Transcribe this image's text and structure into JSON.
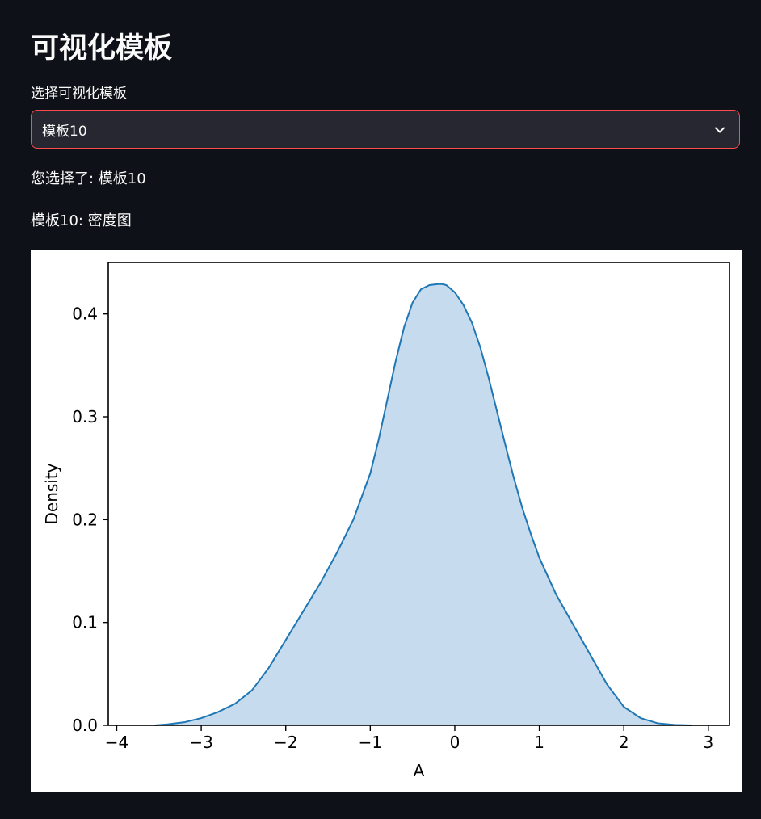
{
  "page": {
    "title": "可视化模板"
  },
  "selector": {
    "label": "选择可视化模板",
    "selected_value": "模板10"
  },
  "info": {
    "selection_text": "您选择了: 模板10",
    "template_caption": "模板10: 密度图"
  },
  "icons": {
    "dropdown": "chevron-down-icon"
  },
  "colors": {
    "background": "#0e1117",
    "select_bg": "#262730",
    "select_border": "#ff4b4b",
    "line": "#1f77b4",
    "fill": "#c6dbed"
  },
  "chart_data": {
    "type": "area",
    "title": "",
    "xlabel": "A",
    "ylabel": "Density",
    "xlim": [
      -4.1,
      3.25
    ],
    "ylim": [
      0.0,
      0.45
    ],
    "xticks": [
      -4,
      -3,
      -2,
      -1,
      0,
      1,
      2,
      3
    ],
    "yticks": [
      0.0,
      0.1,
      0.2,
      0.3,
      0.4
    ],
    "xtick_labels": [
      "−4",
      "−3",
      "−2",
      "−1",
      "0",
      "1",
      "2",
      "3"
    ],
    "ytick_labels": [
      "0.0",
      "0.1",
      "0.2",
      "0.3",
      "0.4"
    ],
    "grid": false,
    "series": [
      {
        "x": [
          -3.55,
          -3.4,
          -3.2,
          -3.0,
          -2.8,
          -2.6,
          -2.4,
          -2.2,
          -2.0,
          -1.8,
          -1.6,
          -1.4,
          -1.2,
          -1.0,
          -0.9,
          -0.8,
          -0.7,
          -0.6,
          -0.5,
          -0.4,
          -0.3,
          -0.2,
          -0.15,
          -0.1,
          0.0,
          0.1,
          0.2,
          0.3,
          0.4,
          0.5,
          0.6,
          0.7,
          0.8,
          0.9,
          1.0,
          1.2,
          1.4,
          1.6,
          1.8,
          2.0,
          2.2,
          2.4,
          2.6,
          2.8
        ],
        "y": [
          0.0,
          0.001,
          0.003,
          0.007,
          0.013,
          0.021,
          0.034,
          0.056,
          0.083,
          0.11,
          0.137,
          0.167,
          0.2,
          0.245,
          0.278,
          0.316,
          0.354,
          0.387,
          0.411,
          0.424,
          0.428,
          0.429,
          0.429,
          0.428,
          0.421,
          0.409,
          0.392,
          0.368,
          0.338,
          0.305,
          0.272,
          0.24,
          0.211,
          0.186,
          0.163,
          0.127,
          0.098,
          0.069,
          0.04,
          0.018,
          0.007,
          0.002,
          0.0005,
          0.0
        ]
      }
    ]
  }
}
